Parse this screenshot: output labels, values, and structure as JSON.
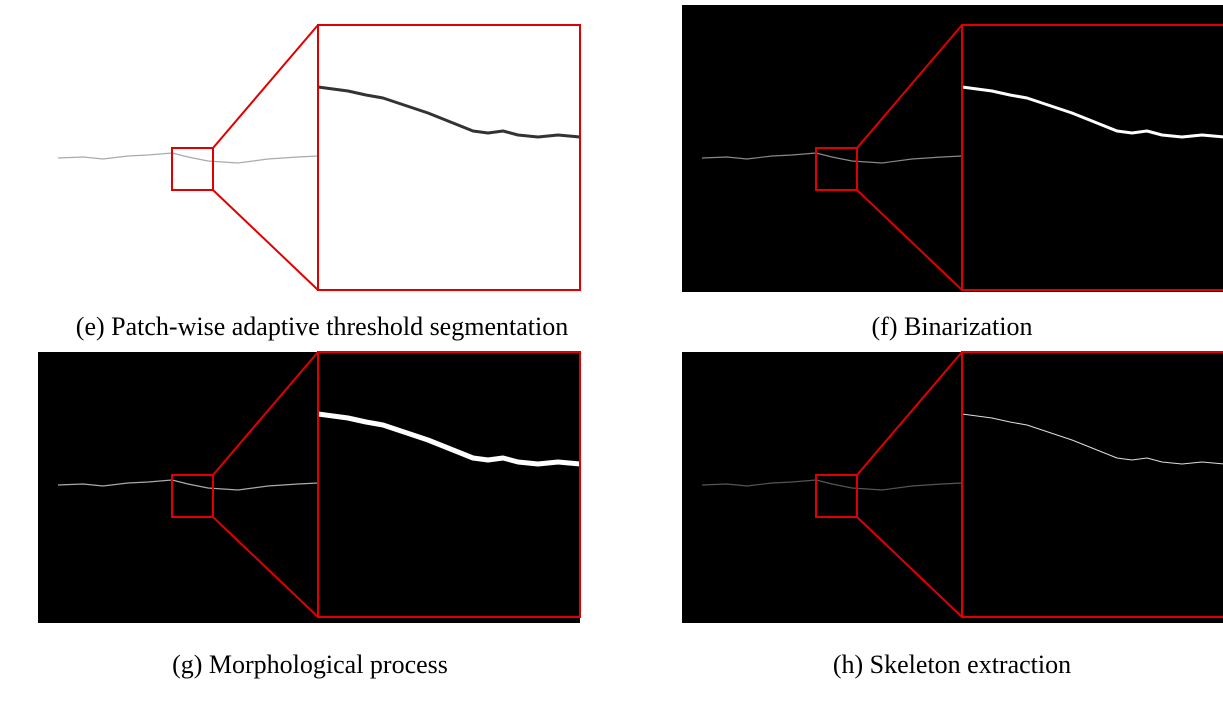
{
  "panels": [
    {
      "caption": "(e) Patch-wise adaptive threshold segmentation"
    },
    {
      "caption": "(f) Binarization"
    },
    {
      "caption": "(g) Morphological process"
    },
    {
      "caption": "(h) Skeleton extraction"
    }
  ]
}
